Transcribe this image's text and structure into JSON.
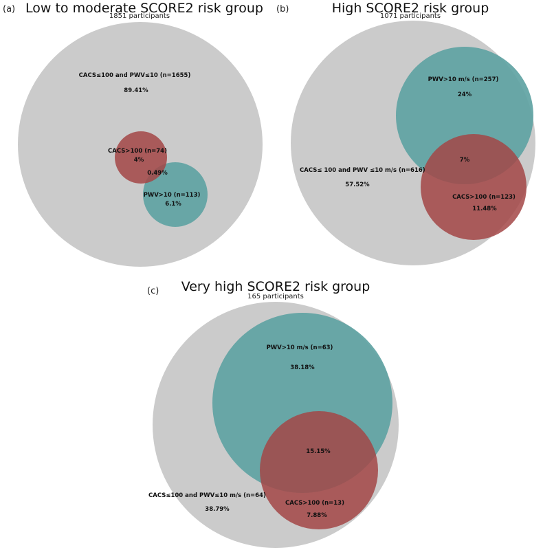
{
  "panels": {
    "a": {
      "letter": "(a)",
      "title": "Low to moderate SCORE2 risk group",
      "subtitle": "1851 participants",
      "neither_label": "CACS≤100 and PWV≤10 (n=1655)",
      "neither_pct": "89.41%",
      "cacs_label": "CACS>100 (n=74)",
      "cacs_pct": "4%",
      "overlap_pct": "0.49%",
      "pwv_label": "PWV>10 (n=113)",
      "pwv_pct": "6.1%"
    },
    "b": {
      "letter": "(b)",
      "title": "High SCORE2 risk group",
      "subtitle": "1071 participants",
      "pwv_label": "PWV>10 m/s (n=257)",
      "pwv_pct": "24%",
      "overlap_pct": "7%",
      "neither_label": "CACS≤ 100 and PWV ≤10 m/s (n=616)",
      "neither_pct": "57.52%",
      "cacs_label": "CACS>100 (n=123)",
      "cacs_pct": "11.48%"
    },
    "c": {
      "letter": "(c)",
      "title": "Very high SCORE2 risk group",
      "subtitle": "165 participants",
      "pwv_label": "PWV>10 m/s (n=63)",
      "pwv_pct": "38.18%",
      "overlap_pct": "15.15%",
      "neither_label": "CACS≤100 and PWV≤10 m/s (n=64)",
      "neither_pct": "38.79%",
      "cacs_label": "CACS>100 (n=13)",
      "cacs_pct": "7.88%"
    }
  },
  "colors": {
    "background_circle": "#cbcbcb",
    "pwv_circle": "#5fa3a3",
    "cacs_circle": "#a34646",
    "overlap": "#6b4545"
  }
}
